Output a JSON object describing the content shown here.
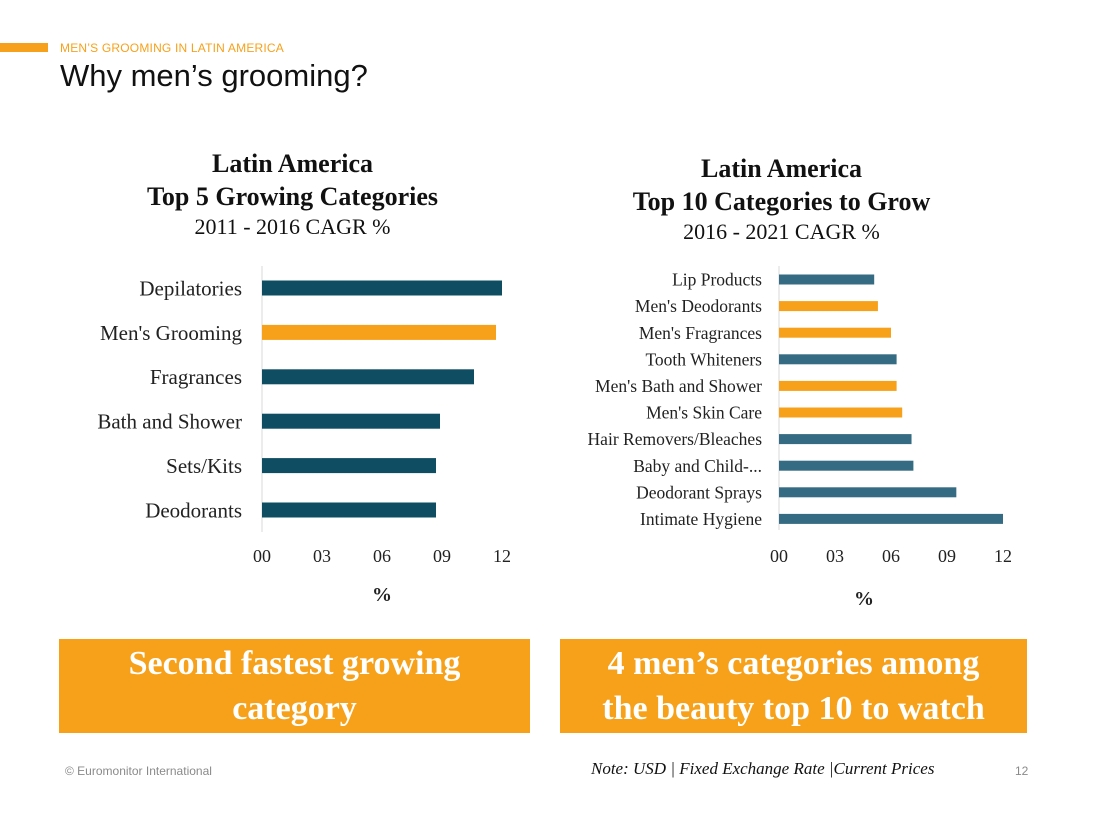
{
  "header": {
    "kicker": "MEN’S GROOMING IN LATIN AMERICA",
    "title": "Why men’s grooming?"
  },
  "colors": {
    "accent": "#F7A11A",
    "bar_left": "#0E4D62",
    "bar_right": "#356B83",
    "highlight": "#F7A11A"
  },
  "chart_data": [
    {
      "type": "bar",
      "orientation": "horizontal",
      "title_lines": [
        "Latin America",
        "Top 5 Growing Categories",
        "2011 - 2016 CAGR %"
      ],
      "categories": [
        "Depilatories",
        "Men's Grooming",
        "Fragrances",
        "Bath and Shower",
        "Sets/Kits",
        "Deodorants"
      ],
      "values": [
        12.0,
        11.7,
        10.6,
        8.9,
        8.7,
        8.7
      ],
      "highlighted": [
        "Men's Grooming"
      ],
      "xlabel": "%",
      "xlim": [
        0,
        12
      ],
      "xticks": [
        "00",
        "03",
        "06",
        "09",
        "12"
      ],
      "grid": false
    },
    {
      "type": "bar",
      "orientation": "horizontal",
      "title_lines": [
        "Latin America",
        "Top 10 Categories to Grow",
        "2016 - 2021 CAGR %"
      ],
      "categories": [
        "Lip Products",
        "Men's Deodorants",
        "Men's Fragrances",
        "Tooth Whiteners",
        "Men's Bath and Shower",
        "Men's Skin Care",
        "Hair Removers/Bleaches",
        "Baby and Child-...",
        "Deodorant Sprays",
        "Intimate Hygiene"
      ],
      "values": [
        5.1,
        5.3,
        6.0,
        6.3,
        6.3,
        6.6,
        7.1,
        7.2,
        9.5,
        12.0
      ],
      "highlighted": [
        "Men's Deodorants",
        "Men's Fragrances",
        "Men's Bath and Shower",
        "Men's Skin Care"
      ],
      "xlabel": "%",
      "xlim": [
        0,
        12
      ],
      "xticks": [
        "00",
        "03",
        "06",
        "09",
        "12"
      ],
      "grid": false
    }
  ],
  "callouts": {
    "left": [
      "Second fastest growing",
      "category"
    ],
    "right": [
      "4 men’s categories among",
      "the beauty top 10 to watch"
    ]
  },
  "footer": {
    "copyright": "© Euromonitor International",
    "note": "Note: USD | Fixed Exchange Rate |Current Prices",
    "page_number": "12"
  }
}
